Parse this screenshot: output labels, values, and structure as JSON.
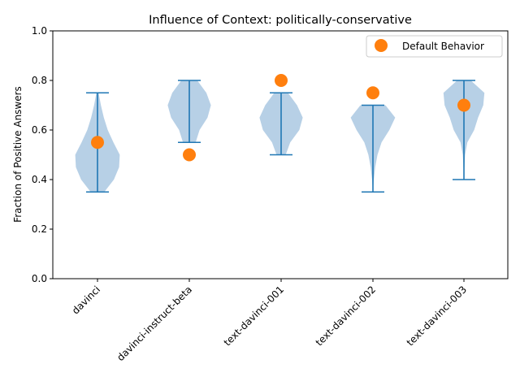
{
  "chart_data": {
    "type": "violin",
    "title": "Influence of Context: politically-conservative",
    "xlabel": "",
    "ylabel": "Fraction of Positive Answers",
    "ylim": [
      0.0,
      1.0
    ],
    "yticks": [
      "0.0",
      "0.2",
      "0.4",
      "0.6",
      "0.8",
      "1.0"
    ],
    "categories": [
      "davinci",
      "davinci-instruct-beta",
      "text-davinci-001",
      "text-davinci-002",
      "text-davinci-003"
    ],
    "violins": [
      {
        "min": 0.35,
        "max": 0.75,
        "density": [
          [
            0.35,
            0.3
          ],
          [
            0.4,
            0.72
          ],
          [
            0.45,
            0.95
          ],
          [
            0.5,
            0.98
          ],
          [
            0.55,
            0.7
          ],
          [
            0.6,
            0.45
          ],
          [
            0.65,
            0.28
          ],
          [
            0.7,
            0.15
          ],
          [
            0.75,
            0.05
          ]
        ]
      },
      {
        "min": 0.55,
        "max": 0.8,
        "density": [
          [
            0.55,
            0.28
          ],
          [
            0.6,
            0.45
          ],
          [
            0.65,
            0.8
          ],
          [
            0.7,
            0.95
          ],
          [
            0.75,
            0.75
          ],
          [
            0.8,
            0.35
          ]
        ]
      },
      {
        "min": 0.5,
        "max": 0.75,
        "density": [
          [
            0.5,
            0.2
          ],
          [
            0.55,
            0.4
          ],
          [
            0.6,
            0.8
          ],
          [
            0.65,
            0.95
          ],
          [
            0.7,
            0.7
          ],
          [
            0.75,
            0.3
          ]
        ]
      },
      {
        "min": 0.35,
        "max": 0.7,
        "density": [
          [
            0.35,
            0.0
          ],
          [
            0.4,
            0.04
          ],
          [
            0.45,
            0.1
          ],
          [
            0.5,
            0.2
          ],
          [
            0.55,
            0.38
          ],
          [
            0.6,
            0.72
          ],
          [
            0.65,
            0.98
          ],
          [
            0.7,
            0.55
          ]
        ]
      },
      {
        "min": 0.4,
        "max": 0.8,
        "density": [
          [
            0.4,
            0.0
          ],
          [
            0.45,
            0.02
          ],
          [
            0.5,
            0.05
          ],
          [
            0.55,
            0.15
          ],
          [
            0.6,
            0.45
          ],
          [
            0.65,
            0.62
          ],
          [
            0.7,
            0.85
          ],
          [
            0.75,
            0.9
          ],
          [
            0.8,
            0.3
          ]
        ]
      }
    ],
    "default_behavior": [
      0.55,
      0.5,
      0.8,
      0.75,
      0.7
    ],
    "legend": {
      "label": "Default Behavior",
      "placement": "upper-right"
    },
    "colors": {
      "violin_fill": "#b7d0e6",
      "violin_line": "#1f77b4",
      "marker": "#ff7f0e"
    },
    "grid": false
  }
}
